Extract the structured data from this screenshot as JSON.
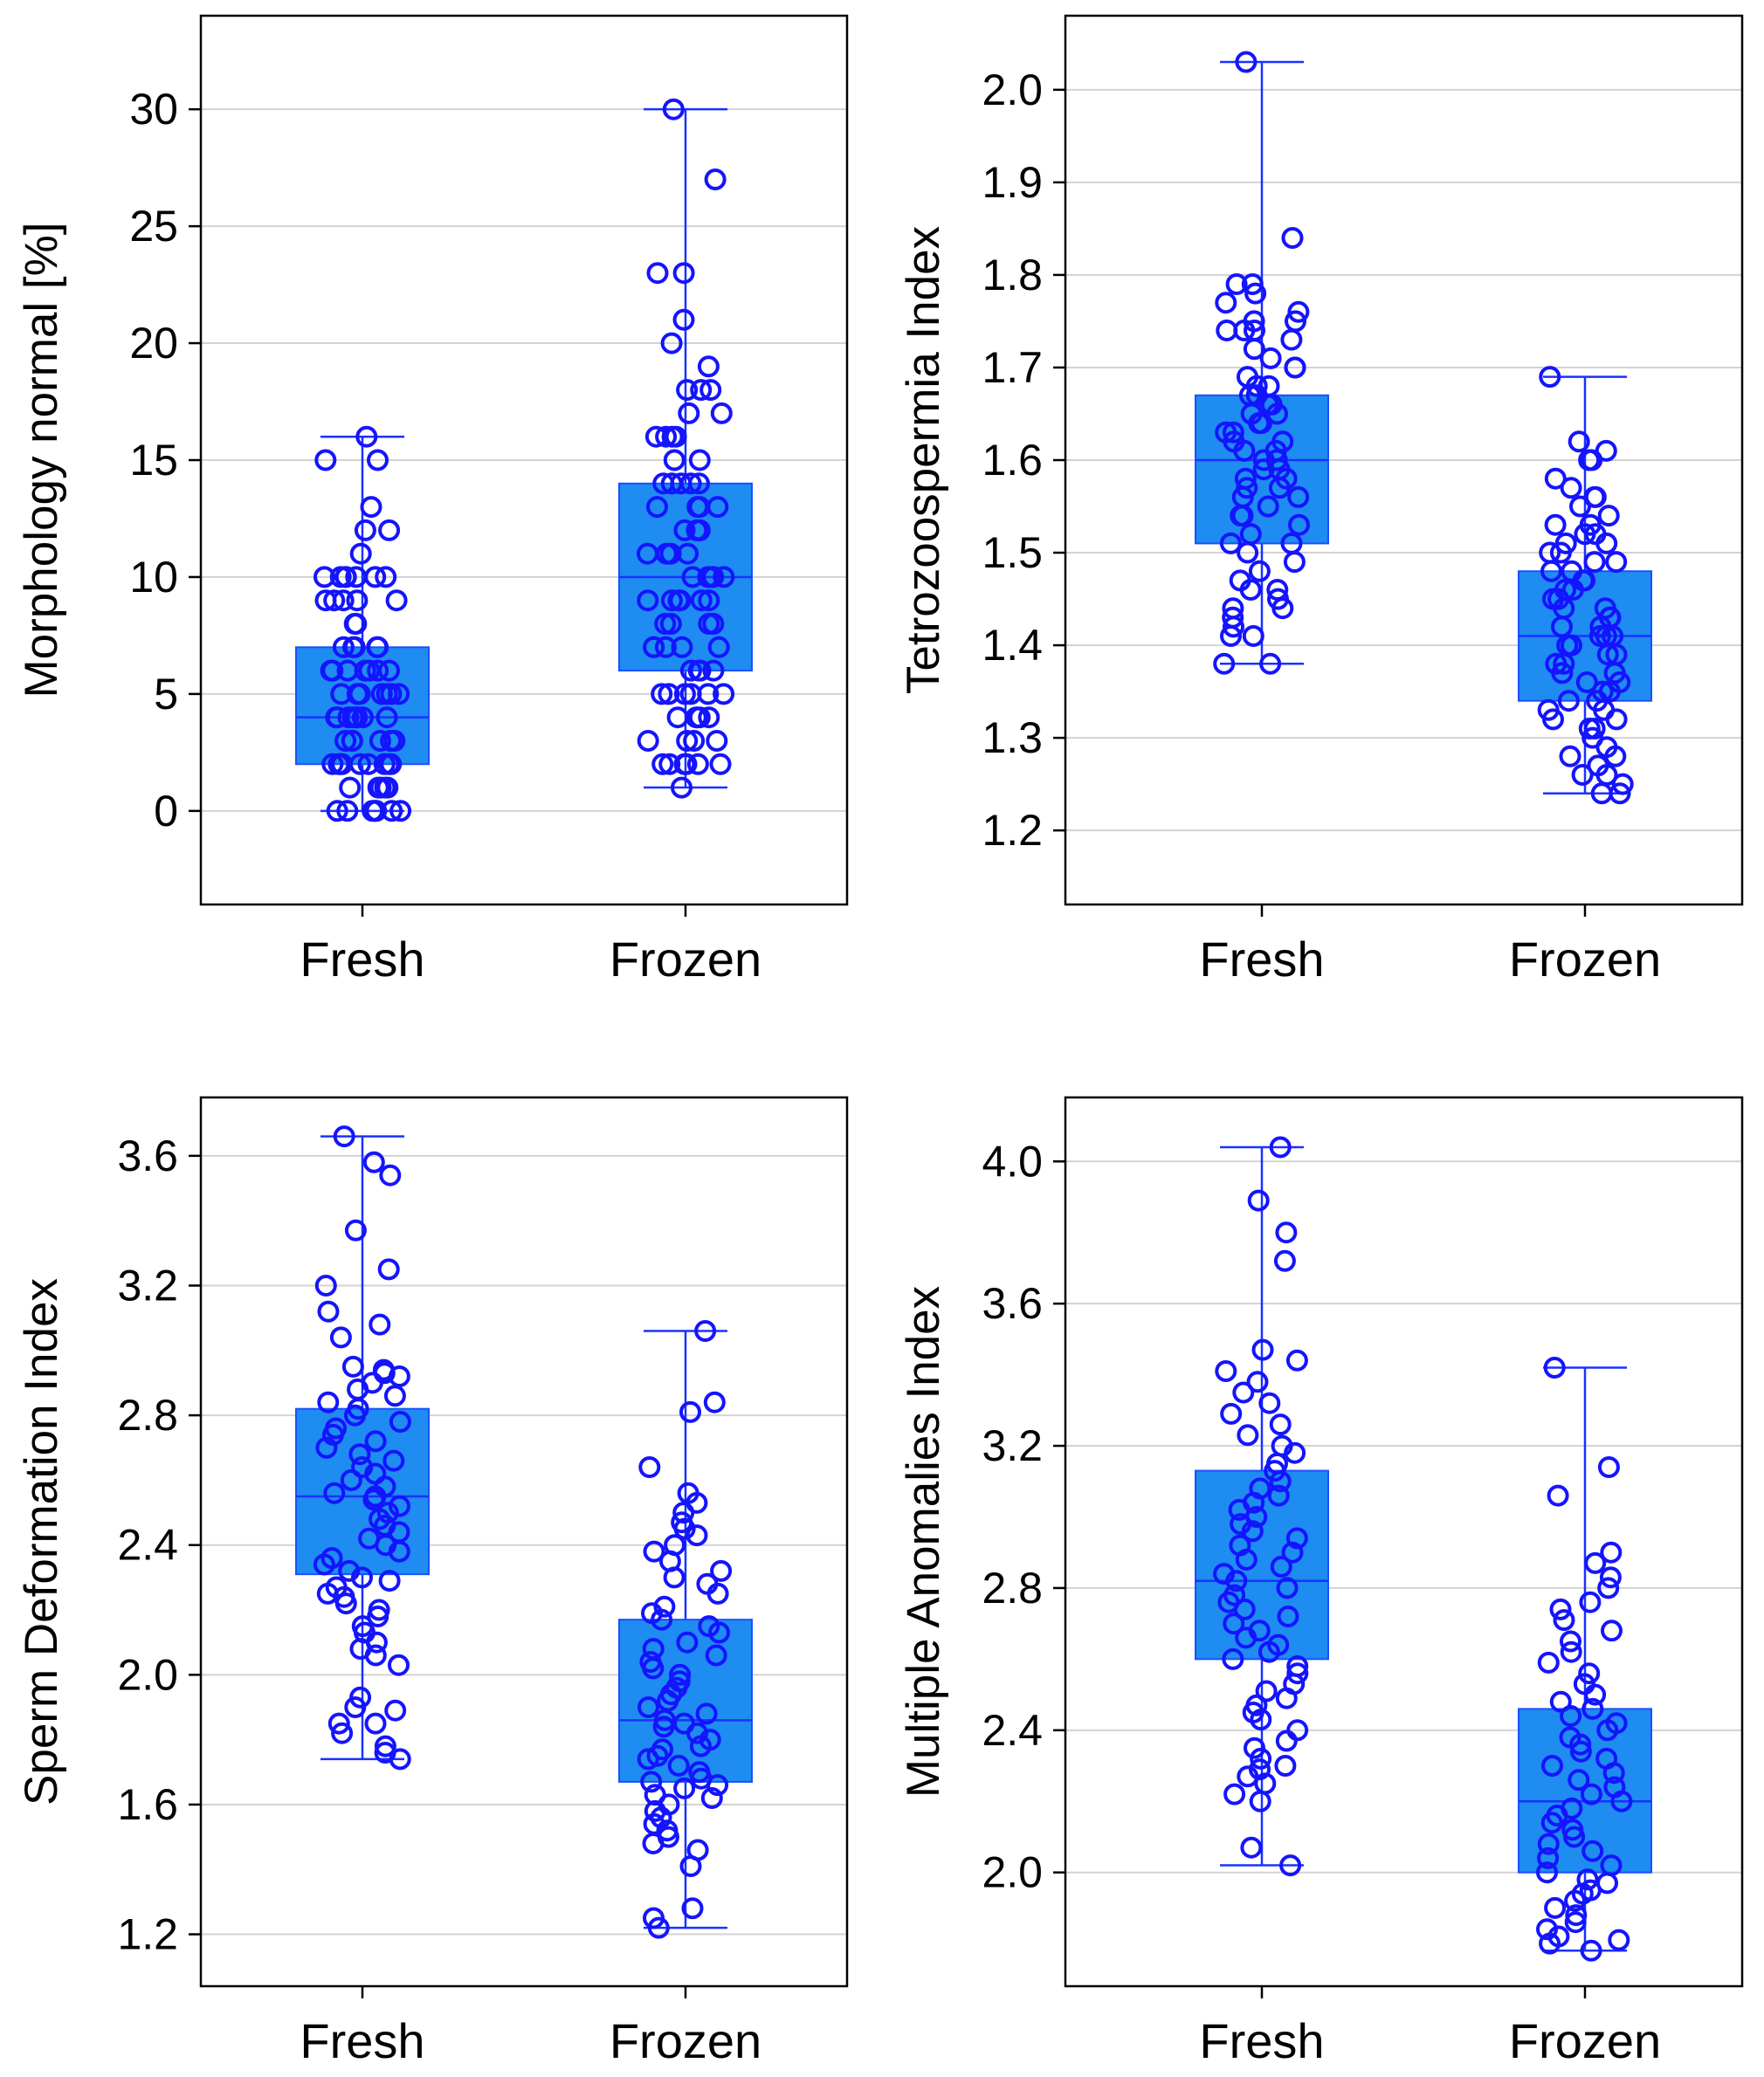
{
  "colors": {
    "box_fill": "#1e8cf0",
    "whisker": "#1a32ff",
    "point": "#1414ff",
    "grid": "#d3d3d3"
  },
  "chart_data": [
    {
      "type": "box",
      "ylabel": "Morphology normal [%]",
      "categories": [
        "Fresh",
        "Frozen"
      ],
      "ylim": [
        -4,
        34
      ],
      "yticks": [
        "0",
        "5",
        "10",
        "15",
        "20",
        "25",
        "30"
      ],
      "ytick_values": [
        0,
        5,
        10,
        15,
        20,
        25,
        30
      ],
      "grid": true,
      "boxes": [
        {
          "category": "Fresh",
          "whisker_low": 0,
          "q1": 2,
          "median": 4,
          "q3": 7,
          "whisker_high": 16,
          "points": [
            0,
            0,
            0,
            0,
            0,
            0,
            0,
            0,
            1,
            1,
            1,
            1,
            1,
            2,
            2,
            2,
            2,
            2,
            2,
            2,
            2,
            2,
            3,
            3,
            3,
            3,
            3,
            3,
            4,
            4,
            4,
            4,
            4,
            4,
            4,
            4,
            5,
            5,
            5,
            5,
            5,
            5,
            5,
            6,
            6,
            6,
            6,
            6,
            6,
            6,
            7,
            7,
            7,
            7,
            7,
            8,
            8,
            9,
            9,
            9,
            9,
            9,
            10,
            10,
            10,
            10,
            10,
            10,
            10,
            11,
            12,
            12,
            13,
            15,
            15,
            16
          ]
        },
        {
          "category": "Frozen",
          "whisker_low": 1,
          "q1": 6,
          "median": 10,
          "q3": 14,
          "whisker_high": 30,
          "points": [
            1,
            2,
            2,
            2,
            2,
            2,
            2,
            3,
            3,
            3,
            3,
            4,
            4,
            4,
            4,
            4,
            5,
            5,
            5,
            5,
            5,
            5,
            6,
            6,
            6,
            6,
            7,
            7,
            7,
            7,
            7,
            8,
            8,
            8,
            8,
            9,
            9,
            9,
            9,
            9,
            9,
            10,
            10,
            10,
            10,
            10,
            11,
            11,
            11,
            11,
            12,
            12,
            12,
            12,
            13,
            13,
            13,
            13,
            14,
            14,
            14,
            14,
            14,
            15,
            15,
            16,
            16,
            16,
            16,
            17,
            17,
            18,
            18,
            18,
            19,
            20,
            21,
            23,
            23,
            27,
            30
          ]
        }
      ]
    },
    {
      "type": "box",
      "ylabel": "Tetrozoospermia Index",
      "categories": [
        "Fresh",
        "Frozen"
      ],
      "ylim": [
        1.12,
        2.08
      ],
      "yticks": [
        "1.2",
        "1.3",
        "1.4",
        "1.5",
        "1.6",
        "1.7",
        "1.8",
        "1.9",
        "2.0"
      ],
      "ytick_values": [
        1.2,
        1.3,
        1.4,
        1.5,
        1.6,
        1.7,
        1.8,
        1.9,
        2.0
      ],
      "grid": true,
      "boxes": [
        {
          "category": "Fresh",
          "whisker_low": 1.38,
          "q1": 1.51,
          "median": 1.6,
          "q3": 1.67,
          "whisker_high": 2.03,
          "points": [
            1.38,
            1.38,
            1.41,
            1.41,
            1.42,
            1.43,
            1.44,
            1.44,
            1.45,
            1.46,
            1.46,
            1.47,
            1.48,
            1.49,
            1.5,
            1.51,
            1.51,
            1.52,
            1.53,
            1.54,
            1.54,
            1.55,
            1.56,
            1.56,
            1.57,
            1.57,
            1.58,
            1.58,
            1.59,
            1.59,
            1.6,
            1.6,
            1.61,
            1.61,
            1.62,
            1.62,
            1.63,
            1.63,
            1.64,
            1.64,
            1.65,
            1.65,
            1.66,
            1.66,
            1.67,
            1.67,
            1.68,
            1.68,
            1.69,
            1.7,
            1.7,
            1.71,
            1.72,
            1.73,
            1.74,
            1.74,
            1.74,
            1.75,
            1.75,
            1.76,
            1.77,
            1.78,
            1.79,
            1.79,
            1.84,
            2.03
          ]
        },
        {
          "category": "Frozen",
          "whisker_low": 1.24,
          "q1": 1.34,
          "median": 1.41,
          "q3": 1.48,
          "whisker_high": 1.69,
          "points": [
            1.24,
            1.24,
            1.25,
            1.26,
            1.26,
            1.27,
            1.28,
            1.28,
            1.29,
            1.3,
            1.31,
            1.31,
            1.32,
            1.32,
            1.33,
            1.33,
            1.34,
            1.34,
            1.35,
            1.35,
            1.36,
            1.36,
            1.37,
            1.37,
            1.38,
            1.38,
            1.39,
            1.39,
            1.4,
            1.4,
            1.41,
            1.41,
            1.41,
            1.42,
            1.42,
            1.43,
            1.43,
            1.44,
            1.44,
            1.45,
            1.45,
            1.46,
            1.46,
            1.47,
            1.47,
            1.48,
            1.48,
            1.49,
            1.49,
            1.5,
            1.5,
            1.51,
            1.51,
            1.52,
            1.52,
            1.53,
            1.53,
            1.54,
            1.55,
            1.56,
            1.56,
            1.57,
            1.58,
            1.6,
            1.6,
            1.61,
            1.62,
            1.69
          ]
        }
      ]
    },
    {
      "type": "box",
      "ylabel": "Sperm Deformation Index",
      "categories": [
        "Fresh",
        "Frozen"
      ],
      "ylim": [
        1.04,
        3.78
      ],
      "yticks": [
        "1.2",
        "1.6",
        "2.0",
        "2.4",
        "2.8",
        "3.2",
        "3.6"
      ],
      "ytick_values": [
        1.2,
        1.6,
        2.0,
        2.4,
        2.8,
        3.2,
        3.6
      ],
      "grid": true,
      "boxes": [
        {
          "category": "Fresh",
          "whisker_low": 1.74,
          "q1": 2.31,
          "median": 2.55,
          "q3": 2.82,
          "whisker_high": 3.66,
          "points": [
            1.74,
            1.76,
            1.78,
            1.82,
            1.85,
            1.85,
            1.89,
            1.9,
            1.93,
            2.03,
            2.06,
            2.08,
            2.1,
            2.13,
            2.15,
            2.18,
            2.2,
            2.22,
            2.24,
            2.25,
            2.27,
            2.29,
            2.3,
            2.32,
            2.34,
            2.36,
            2.38,
            2.4,
            2.42,
            2.44,
            2.46,
            2.48,
            2.5,
            2.52,
            2.54,
            2.55,
            2.56,
            2.58,
            2.6,
            2.62,
            2.64,
            2.66,
            2.68,
            2.7,
            2.72,
            2.74,
            2.76,
            2.78,
            2.8,
            2.82,
            2.84,
            2.86,
            2.88,
            2.9,
            2.92,
            2.93,
            2.94,
            2.95,
            3.04,
            3.08,
            3.12,
            3.2,
            3.25,
            3.37,
            3.54,
            3.58,
            3.66
          ]
        },
        {
          "category": "Frozen",
          "whisker_low": 1.22,
          "q1": 1.67,
          "median": 1.86,
          "q3": 2.17,
          "whisker_high": 3.06,
          "points": [
            1.22,
            1.25,
            1.28,
            1.41,
            1.46,
            1.48,
            1.5,
            1.52,
            1.54,
            1.56,
            1.58,
            1.6,
            1.62,
            1.63,
            1.65,
            1.66,
            1.67,
            1.68,
            1.7,
            1.72,
            1.74,
            1.75,
            1.77,
            1.78,
            1.8,
            1.82,
            1.84,
            1.85,
            1.86,
            1.88,
            1.9,
            1.92,
            1.94,
            1.96,
            1.98,
            2.0,
            2.02,
            2.04,
            2.06,
            2.08,
            2.1,
            2.13,
            2.15,
            2.17,
            2.19,
            2.21,
            2.25,
            2.28,
            2.3,
            2.32,
            2.35,
            2.38,
            2.4,
            2.43,
            2.45,
            2.47,
            2.5,
            2.53,
            2.56,
            2.64,
            2.81,
            2.84,
            3.06
          ]
        }
      ]
    },
    {
      "type": "box",
      "ylabel": "Multiple Anomalies Index",
      "categories": [
        "Fresh",
        "Frozen"
      ],
      "ylim": [
        1.68,
        4.18
      ],
      "yticks": [
        "2.0",
        "2.4",
        "2.8",
        "3.2",
        "3.6",
        "4.0"
      ],
      "ytick_values": [
        2.0,
        2.4,
        2.8,
        3.2,
        3.6,
        4.0
      ],
      "grid": true,
      "boxes": [
        {
          "category": "Fresh",
          "whisker_low": 2.02,
          "q1": 2.6,
          "median": 2.82,
          "q3": 3.13,
          "whisker_high": 4.04,
          "points": [
            2.02,
            2.07,
            2.2,
            2.22,
            2.25,
            2.27,
            2.29,
            2.3,
            2.32,
            2.35,
            2.37,
            2.4,
            2.43,
            2.45,
            2.47,
            2.49,
            2.51,
            2.53,
            2.56,
            2.58,
            2.6,
            2.62,
            2.64,
            2.66,
            2.68,
            2.7,
            2.72,
            2.74,
            2.76,
            2.78,
            2.8,
            2.82,
            2.84,
            2.86,
            2.88,
            2.9,
            2.92,
            2.94,
            2.96,
            2.98,
            3.0,
            3.02,
            3.04,
            3.06,
            3.08,
            3.1,
            3.13,
            3.15,
            3.18,
            3.2,
            3.23,
            3.26,
            3.29,
            3.32,
            3.35,
            3.38,
            3.41,
            3.44,
            3.47,
            3.72,
            3.8,
            3.89,
            4.04
          ]
        },
        {
          "category": "Frozen",
          "whisker_low": 1.78,
          "q1": 2.0,
          "median": 2.2,
          "q3": 2.46,
          "whisker_high": 3.42,
          "points": [
            1.78,
            1.8,
            1.81,
            1.82,
            1.84,
            1.86,
            1.88,
            1.9,
            1.92,
            1.94,
            1.95,
            1.97,
            1.98,
            2.0,
            2.02,
            2.04,
            2.06,
            2.08,
            2.1,
            2.12,
            2.14,
            2.16,
            2.18,
            2.2,
            2.22,
            2.24,
            2.26,
            2.28,
            2.3,
            2.32,
            2.34,
            2.36,
            2.38,
            2.4,
            2.42,
            2.44,
            2.46,
            2.48,
            2.5,
            2.53,
            2.56,
            2.59,
            2.62,
            2.65,
            2.68,
            2.71,
            2.74,
            2.76,
            2.8,
            2.83,
            2.87,
            2.9,
            3.06,
            3.14,
            3.42
          ]
        }
      ]
    }
  ]
}
